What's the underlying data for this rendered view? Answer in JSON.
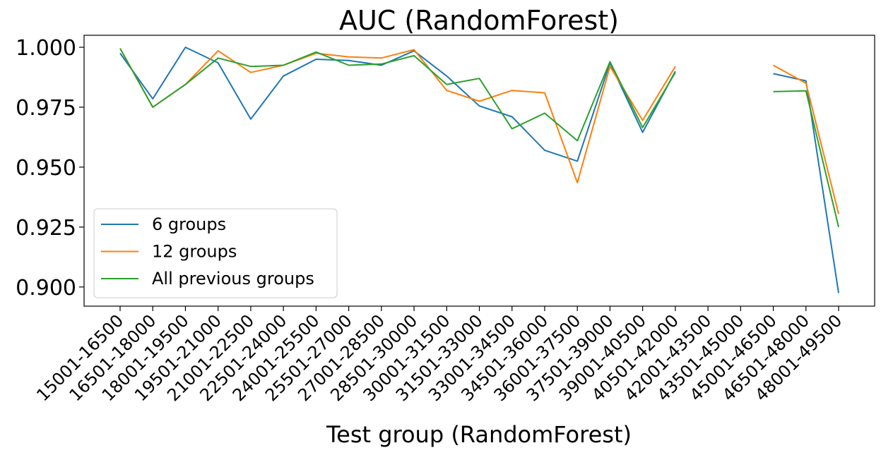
{
  "chart_data": {
    "type": "line",
    "title": "AUC (RandomForest)",
    "xlabel": "Test group (RandomForest)",
    "ylabel": "",
    "ylim": [
      0.892,
      1.005
    ],
    "yticks": [
      0.9,
      0.925,
      0.95,
      0.975,
      1.0
    ],
    "ytick_labels": [
      "0.900",
      "0.925",
      "0.950",
      "0.975",
      "1.000"
    ],
    "legend_position": "lower-left",
    "grid": false,
    "categories": [
      "15001-16500",
      "16501-18000",
      "18001-19500",
      "19501-21000",
      "21001-22500",
      "22501-24000",
      "24001-25500",
      "25501-27000",
      "27001-28500",
      "28501-30000",
      "30001-31500",
      "31501-33000",
      "33001-34500",
      "34501-36000",
      "36001-37500",
      "37501-39000",
      "39001-40500",
      "40501-42000",
      "42001-43500",
      "43501-45000",
      "45001-46500",
      "46501-48000",
      "48001-49500"
    ],
    "series": [
      {
        "name": "6 groups",
        "color": "#1f77b4",
        "values": [
          0.9975,
          0.9785,
          1.0,
          0.9935,
          0.97,
          0.988,
          0.995,
          0.9945,
          0.9925,
          0.9985,
          0.988,
          0.9755,
          0.971,
          0.957,
          0.9525,
          0.9935,
          0.9645,
          0.99,
          null,
          null,
          0.989,
          0.986,
          0.8975
        ]
      },
      {
        "name": "12 groups",
        "color": "#ff7f0e",
        "values": [
          0.9995,
          0.975,
          0.9845,
          0.9985,
          0.9895,
          0.9925,
          0.9975,
          0.996,
          0.9955,
          0.999,
          0.982,
          0.9775,
          0.982,
          0.981,
          0.9435,
          0.992,
          0.9695,
          0.992,
          null,
          null,
          0.9925,
          0.985,
          0.9305
        ]
      },
      {
        "name": "All previous groups",
        "color": "#2ca02c",
        "values": [
          0.9995,
          0.975,
          0.9845,
          0.9955,
          0.992,
          0.9925,
          0.998,
          0.9925,
          0.993,
          0.9965,
          0.9845,
          0.987,
          0.966,
          0.9725,
          0.961,
          0.994,
          0.9665,
          0.9895,
          null,
          null,
          0.9815,
          0.9818,
          0.925
        ]
      }
    ]
  }
}
